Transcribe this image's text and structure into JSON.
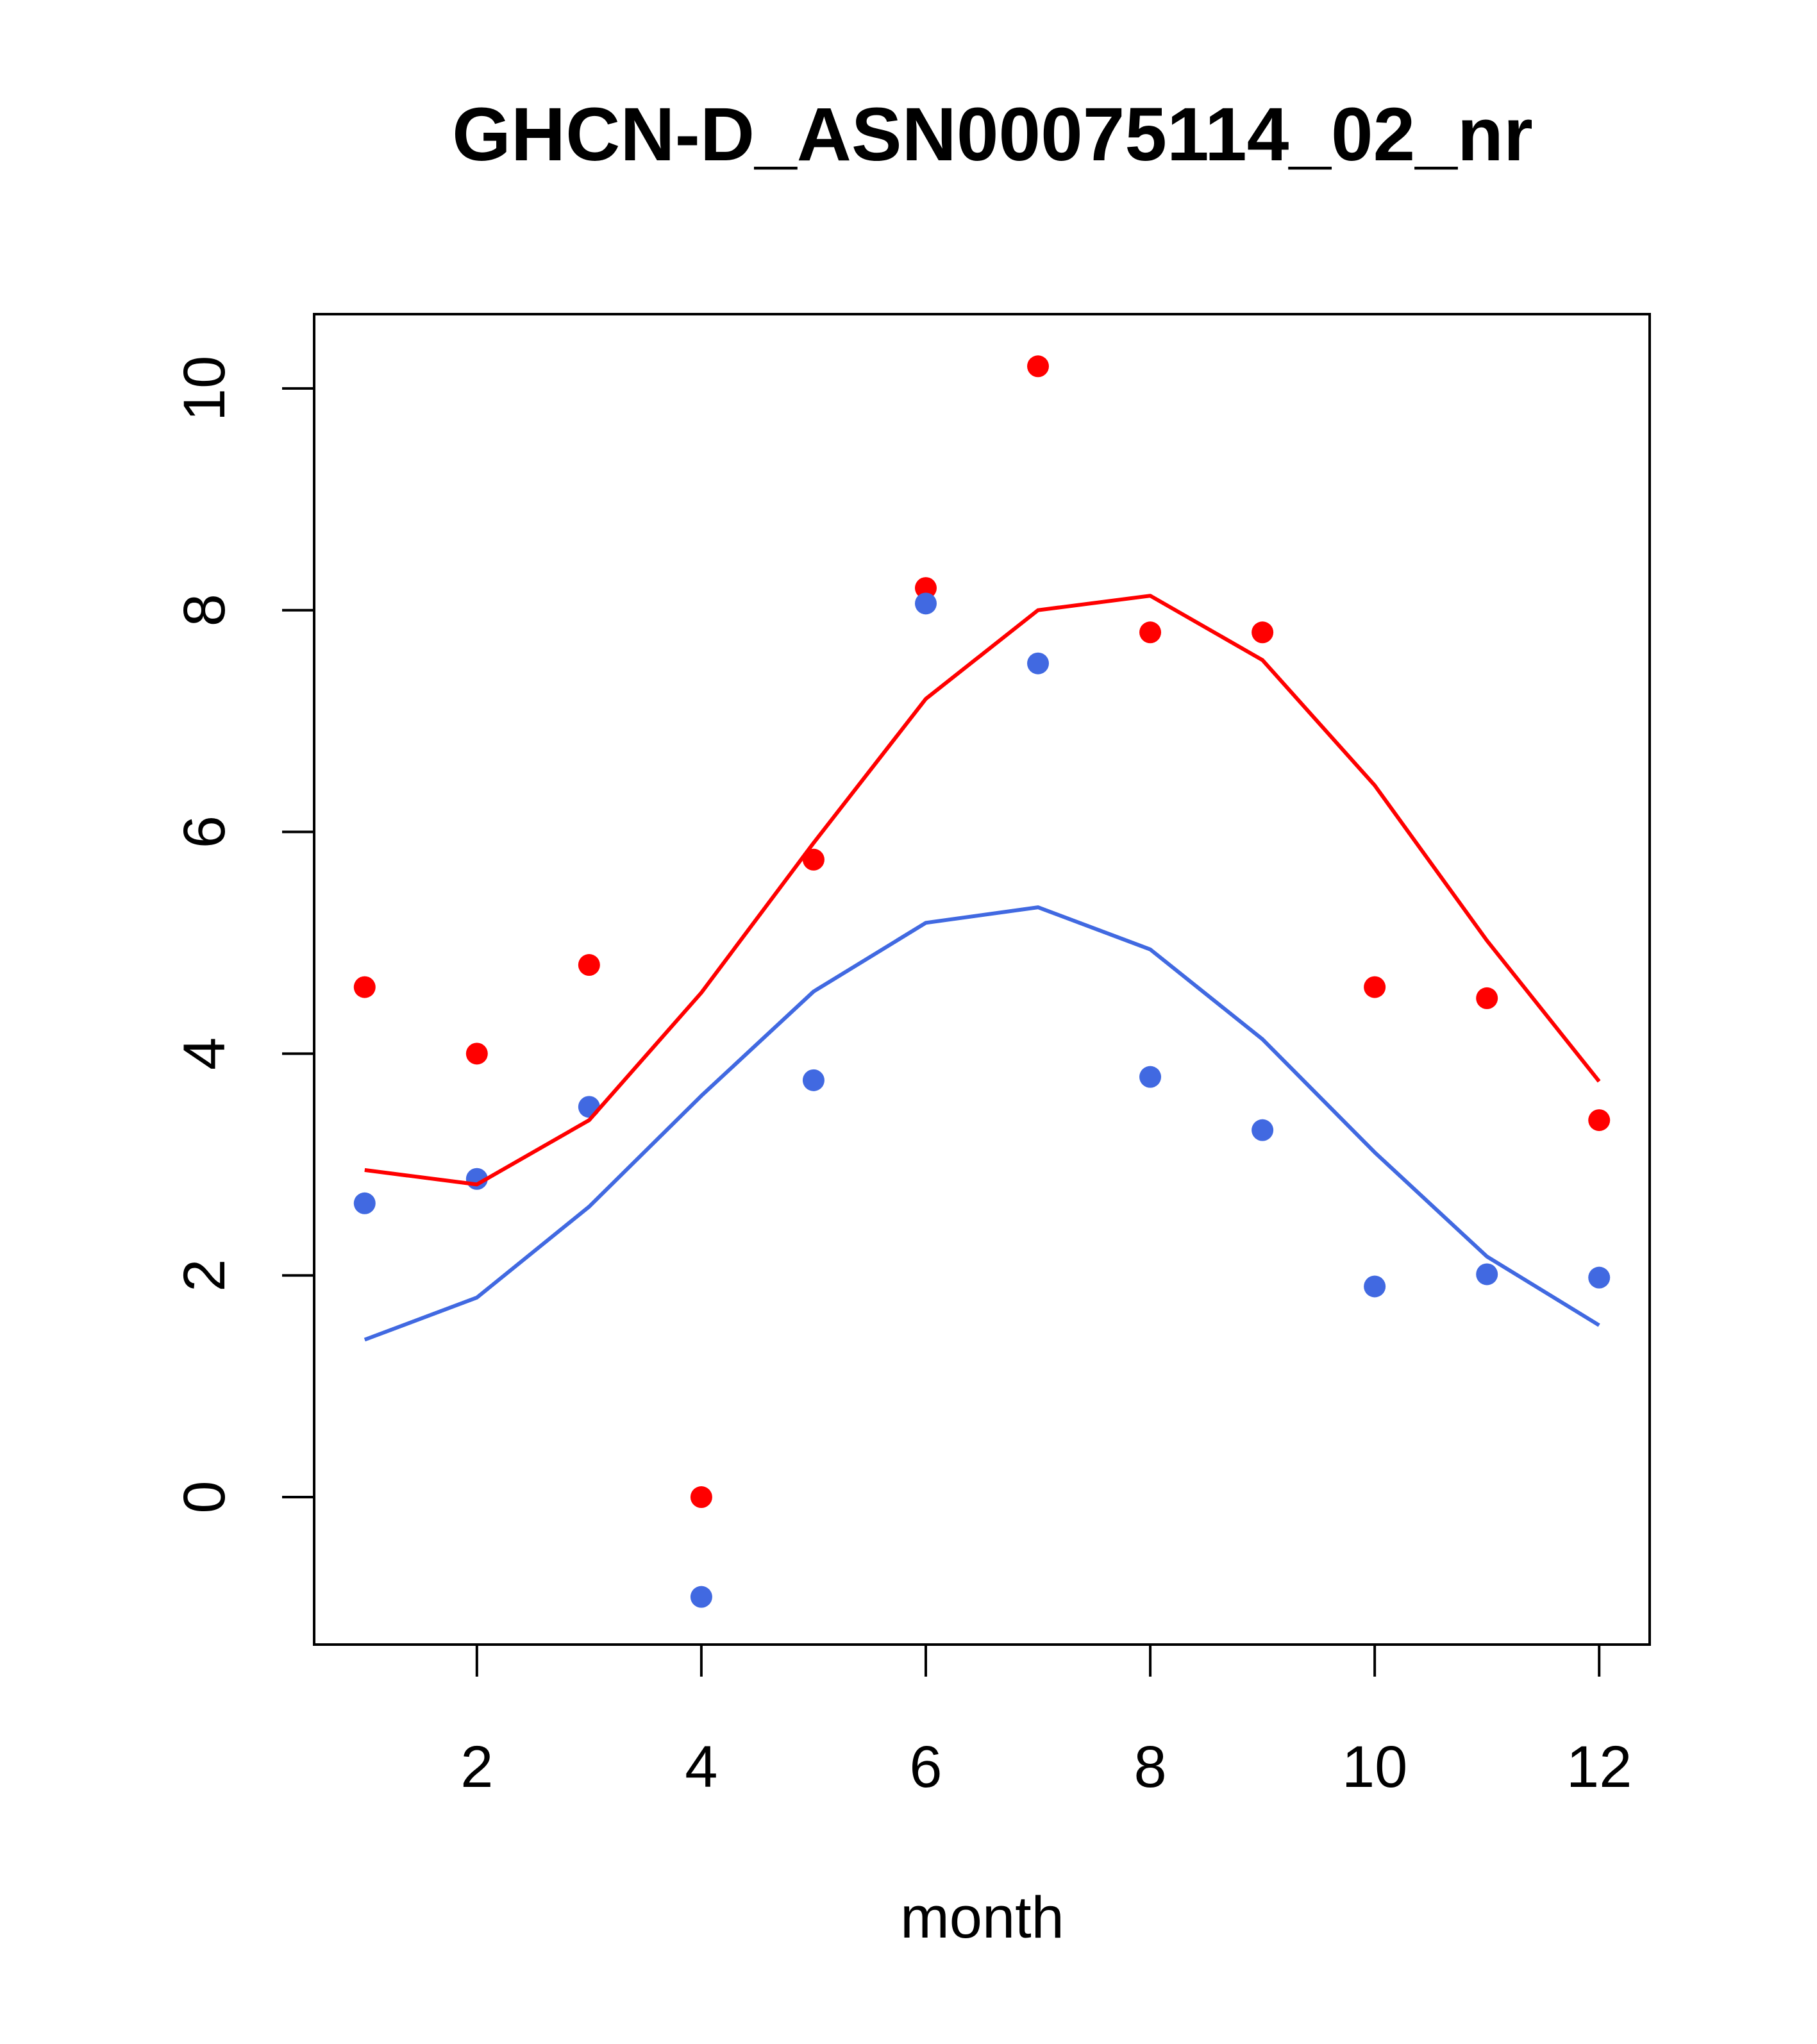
{
  "chart_data": {
    "type": "scatter",
    "title": "GHCN-D_ASN00075114_02_nr",
    "xlabel": "month",
    "ylabel": "",
    "xlim": [
      0.55,
      12.45
    ],
    "ylim": [
      -1.33,
      10.67
    ],
    "x_ticks": [
      2,
      4,
      6,
      8,
      10,
      12
    ],
    "y_ticks": [
      0,
      2,
      4,
      6,
      8,
      10
    ],
    "x": [
      1,
      2,
      3,
      4,
      5,
      6,
      7,
      8,
      9,
      10,
      11,
      12
    ],
    "grid": false,
    "series": [
      {
        "kind": "points",
        "color": "#ff0000",
        "values": [
          4.6,
          4.0,
          4.8,
          0.0,
          5.75,
          8.2,
          10.2,
          7.8,
          7.8,
          4.6,
          4.5,
          3.4
        ]
      },
      {
        "kind": "points",
        "color": "#4169e1",
        "values": [
          2.65,
          2.87,
          3.52,
          -0.9,
          3.76,
          8.06,
          7.52,
          3.79,
          3.31,
          1.9,
          2.01,
          1.98
        ]
      },
      {
        "kind": "line",
        "color": "#ff0000",
        "values": [
          2.95,
          2.82,
          3.4,
          4.55,
          5.9,
          7.2,
          8.0,
          8.13,
          7.55,
          6.42,
          5.02,
          3.75
        ]
      },
      {
        "kind": "line",
        "color": "#4169e1",
        "values": [
          1.42,
          1.8,
          2.62,
          3.62,
          4.56,
          5.18,
          5.32,
          4.94,
          4.13,
          3.11,
          2.17,
          1.55
        ]
      }
    ]
  }
}
